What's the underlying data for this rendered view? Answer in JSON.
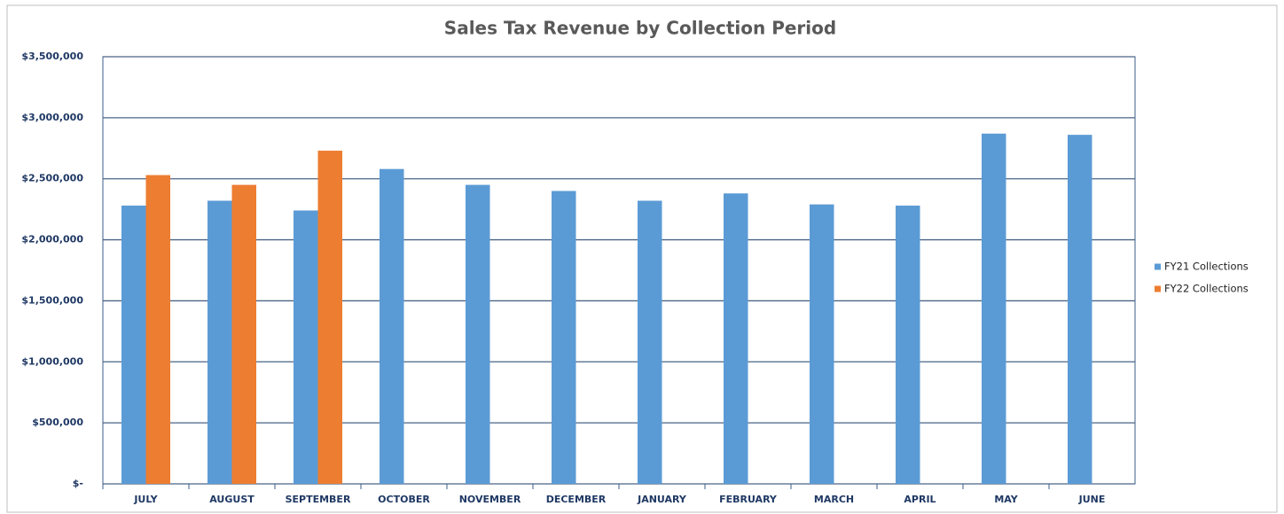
{
  "chart_data": {
    "type": "bar",
    "title": "Sales Tax Revenue by Collection Period",
    "categories": [
      "JULY",
      "AUGUST",
      "SEPTEMBER",
      "OCTOBER",
      "NOVEMBER",
      "DECEMBER",
      "JANUARY",
      "FEBRUARY",
      "MARCH",
      "APRIL",
      "MAY",
      "JUNE"
    ],
    "series": [
      {
        "name": "FY21 Collections",
        "color": "#5b9bd5",
        "values": [
          2280000,
          2320000,
          2240000,
          2580000,
          2450000,
          2400000,
          2320000,
          2380000,
          2290000,
          2280000,
          2870000,
          2860000
        ]
      },
      {
        "name": "FY22 Collections",
        "color": "#ed7d31",
        "values": [
          2530000,
          2450000,
          2730000,
          null,
          null,
          null,
          null,
          null,
          null,
          null,
          null,
          null
        ]
      }
    ],
    "ylim": [
      0,
      3500000
    ],
    "yticks": [
      {
        "value": 0,
        "label": "$-"
      },
      {
        "value": 500000,
        "label": "$500,000"
      },
      {
        "value": 1000000,
        "label": "$1,000,000"
      },
      {
        "value": 1500000,
        "label": "$1,500,000"
      },
      {
        "value": 2000000,
        "label": "$2,000,000"
      },
      {
        "value": 2500000,
        "label": "$2,500,000"
      },
      {
        "value": 3000000,
        "label": "$3,000,000"
      },
      {
        "value": 3500000,
        "label": "$3,500,000"
      }
    ],
    "grid": true,
    "legend": "right"
  }
}
